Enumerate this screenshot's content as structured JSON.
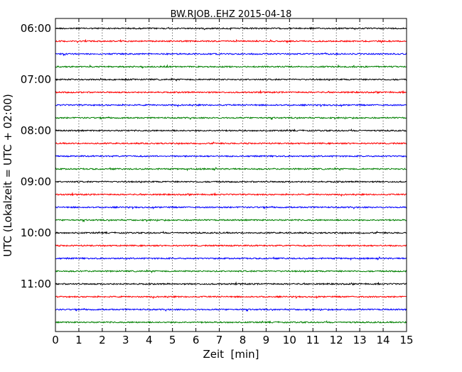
{
  "chart_data": {
    "type": "line",
    "title": "BW.RJOB..EHZ 2015-04-18",
    "xlabel": "Zeit  [min]",
    "ylabel": "UTC (Lokalzeit = UTC + 02:00)",
    "xlim": [
      0,
      15
    ],
    "x_ticks": [
      "0",
      "1",
      "2",
      "3",
      "4",
      "5",
      "6",
      "7",
      "8",
      "9",
      "10",
      "11",
      "12",
      "13",
      "14",
      "15"
    ],
    "y_ticks": [
      "06:00",
      "07:00",
      "08:00",
      "09:00",
      "10:00",
      "11:00"
    ],
    "grid": "vertical-dotted",
    "trace_colors": [
      "#000000",
      "#ff0000",
      "#0000ff",
      "#008000"
    ],
    "series": [
      {
        "start": "06:00"
      },
      {
        "start": "06:15"
      },
      {
        "start": "06:30"
      },
      {
        "start": "06:45"
      },
      {
        "start": "07:00"
      },
      {
        "start": "07:15"
      },
      {
        "start": "07:30"
      },
      {
        "start": "07:45"
      },
      {
        "start": "08:00"
      },
      {
        "start": "08:15"
      },
      {
        "start": "08:30"
      },
      {
        "start": "08:45"
      },
      {
        "start": "09:00"
      },
      {
        "start": "09:15"
      },
      {
        "start": "09:30"
      },
      {
        "start": "09:45"
      },
      {
        "start": "10:00"
      },
      {
        "start": "10:15"
      },
      {
        "start": "10:30"
      },
      {
        "start": "10:45"
      },
      {
        "start": "11:00"
      },
      {
        "start": "11:15"
      },
      {
        "start": "11:30"
      },
      {
        "start": "11:45"
      }
    ]
  }
}
